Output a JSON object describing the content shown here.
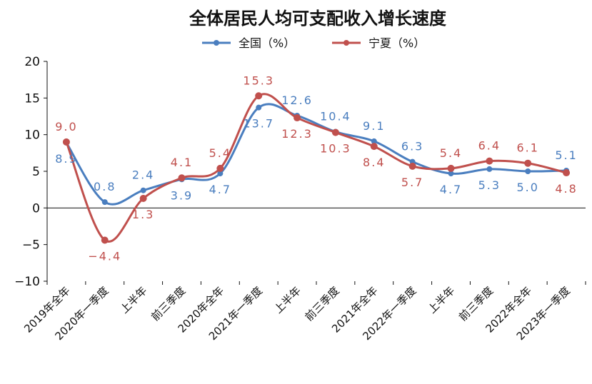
{
  "chart_data": {
    "type": "line",
    "title": "全体居民人均可支配收入增长速度",
    "categories": [
      "2019年全年",
      "2020年一季度",
      "上半年",
      "前三季度",
      "2020年全年",
      "2021年一季度",
      "上半年",
      "前三季度",
      "2021年全年",
      "2022年一季度",
      "上半年",
      "前三季度",
      "2022年全年",
      "2023年一季度"
    ],
    "series": [
      {
        "name": "全国（%）",
        "color": "#4a7ebf",
        "values": [
          8.9,
          0.8,
          2.4,
          3.9,
          4.7,
          13.7,
          12.6,
          10.4,
          9.1,
          6.3,
          4.7,
          5.3,
          5.0,
          5.1
        ]
      },
      {
        "name": "宁夏（%）",
        "color": "#c0504d",
        "values": [
          9.0,
          -4.4,
          1.3,
          4.1,
          5.4,
          15.3,
          12.3,
          10.3,
          8.4,
          5.7,
          5.4,
          6.4,
          6.1,
          4.8
        ]
      }
    ],
    "ytick_labels": [
      "20",
      "15",
      "10",
      "5",
      "0",
      "−5",
      "−10"
    ],
    "ylim": [
      -10,
      20
    ],
    "ytick_step": 5,
    "legend_position": "top-center",
    "grid": false,
    "smooth": true,
    "xlabel": "",
    "ylabel": ""
  }
}
